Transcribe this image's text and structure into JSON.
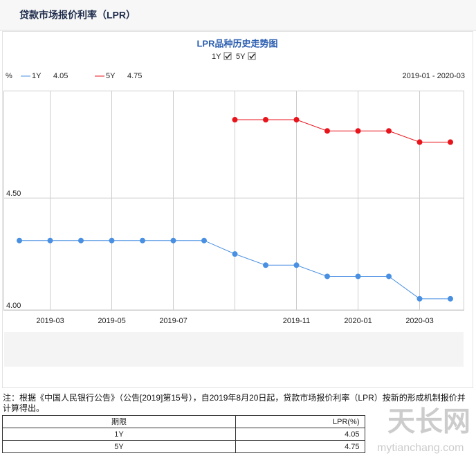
{
  "header": {
    "title": "贷款市场报价利率（LPR）"
  },
  "chart_data": {
    "type": "line",
    "title": "LPR品种历史走势图",
    "unit": "%",
    "range": "2019-01 - 2020-03",
    "categories": [
      null,
      "2019-03",
      null,
      "2019-05",
      null,
      "2019-07",
      null,
      null,
      null,
      "2019-11",
      null,
      "2020-01",
      null,
      "2020-03",
      null
    ],
    "series": [
      {
        "name": "1Y",
        "color": "#4a90e2",
        "values": [
          4.31,
          4.31,
          4.31,
          4.31,
          4.31,
          4.31,
          4.31,
          4.25,
          4.2,
          4.2,
          4.15,
          4.15,
          4.15,
          4.05,
          4.05
        ]
      },
      {
        "name": "5Y",
        "color": "#e8141c",
        "values": [
          null,
          null,
          null,
          null,
          null,
          null,
          null,
          4.85,
          4.85,
          4.85,
          4.8,
          4.8,
          4.8,
          4.75,
          4.75
        ]
      }
    ],
    "ylim": [
      4.0,
      4.98
    ],
    "yticks": [
      {
        "value": 4,
        "label": "4.00"
      },
      {
        "value": 4.5,
        "label": "4.50"
      }
    ],
    "grid": true
  },
  "note": "注：根据《中国人民银行公告》（公告[2019]第15号），自2019年8月20日起，贷款市场报价利率（LPR）按新的形成机制报价并计算得出。",
  "table": {
    "header": [
      "期限",
      "LPR(%)"
    ],
    "rows": [
      [
        "1Y",
        4.05
      ],
      [
        "5Y",
        4.75
      ]
    ]
  },
  "watermark": {
    "name": "天长网",
    "url": "mytianchang.com"
  }
}
